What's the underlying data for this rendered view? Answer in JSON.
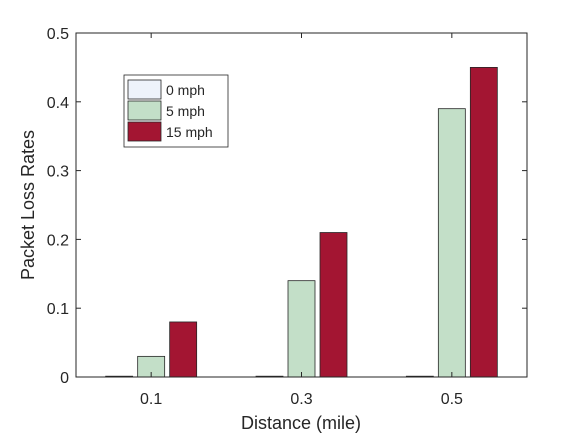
{
  "chart_data": {
    "type": "bar",
    "title": "",
    "xlabel": "Distance (mile)",
    "ylabel": "Packet Loss Rates",
    "categories": [
      "0.1",
      "0.3",
      "0.5"
    ],
    "series": [
      {
        "name": "0 mph",
        "values": [
          0.0,
          0.0,
          0.0
        ],
        "color": "#eef3fb"
      },
      {
        "name": "5 mph",
        "values": [
          0.03,
          0.14,
          0.39
        ],
        "color": "#c3dfc8"
      },
      {
        "name": "15 mph",
        "values": [
          0.08,
          0.21,
          0.45
        ],
        "color": "#a31532"
      }
    ],
    "ylim": [
      0,
      0.5
    ],
    "yticks": [
      "0",
      "0.1",
      "0.2",
      "0.3",
      "0.4",
      "0.5"
    ],
    "grid": false,
    "legend_position": "top-left"
  }
}
